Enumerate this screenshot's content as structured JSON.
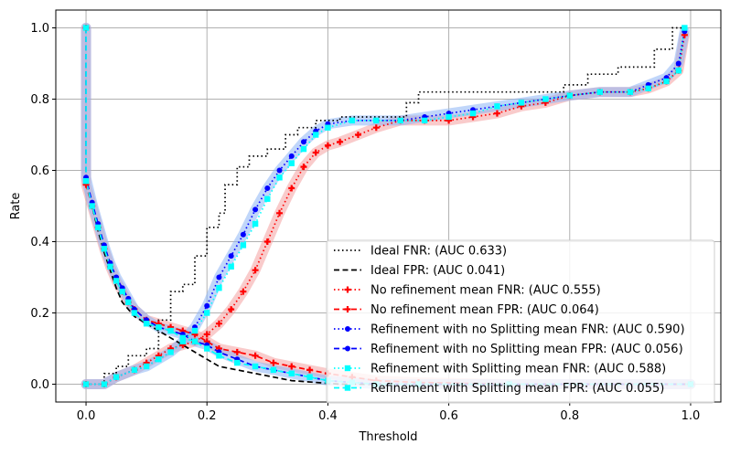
{
  "chart_data": {
    "type": "line",
    "title": "",
    "xlabel": "Threshold",
    "ylabel": "Rate",
    "xlim": [
      -0.05,
      1.05
    ],
    "ylim": [
      -0.05,
      1.05
    ],
    "xticks": [
      "0.0",
      "0.2",
      "0.4",
      "0.6",
      "0.8",
      "1.0"
    ],
    "yticks": [
      "0.0",
      "0.2",
      "0.4",
      "0.6",
      "0.8",
      "1.0"
    ],
    "grid": true,
    "legend_position": "bottom-right",
    "series": [
      {
        "name": "Ideal FNR: (AUC 0.633)",
        "color": "#000000",
        "dash": "dotted",
        "marker": "none",
        "band": false,
        "x": [
          0.0,
          0.03,
          0.03,
          0.05,
          0.05,
          0.07,
          0.07,
          0.1,
          0.1,
          0.12,
          0.12,
          0.14,
          0.14,
          0.16,
          0.16,
          0.18,
          0.18,
          0.2,
          0.2,
          0.22,
          0.22,
          0.23,
          0.23,
          0.25,
          0.25,
          0.27,
          0.27,
          0.3,
          0.3,
          0.33,
          0.33,
          0.35,
          0.35,
          0.38,
          0.38,
          0.42,
          0.42,
          0.53,
          0.53,
          0.55,
          0.55,
          0.66,
          0.66,
          0.76,
          0.76,
          0.79,
          0.79,
          0.83,
          0.83,
          0.88,
          0.88,
          0.94,
          0.94,
          0.97,
          0.97,
          0.99
        ],
        "y": [
          0.0,
          0.0,
          0.03,
          0.03,
          0.05,
          0.05,
          0.08,
          0.08,
          0.1,
          0.1,
          0.18,
          0.18,
          0.26,
          0.26,
          0.28,
          0.28,
          0.36,
          0.36,
          0.44,
          0.44,
          0.48,
          0.48,
          0.56,
          0.56,
          0.61,
          0.61,
          0.64,
          0.64,
          0.66,
          0.66,
          0.7,
          0.7,
          0.72,
          0.72,
          0.74,
          0.74,
          0.75,
          0.75,
          0.79,
          0.79,
          0.82,
          0.82,
          0.82,
          0.82,
          0.82,
          0.82,
          0.84,
          0.84,
          0.87,
          0.87,
          0.89,
          0.89,
          0.94,
          0.94,
          1.0,
          1.0
        ]
      },
      {
        "name": "Ideal FPR: (AUC 0.041)",
        "color": "#000000",
        "dash": "dashed",
        "marker": "none",
        "band": false,
        "x": [
          0.0,
          0.0,
          0.01,
          0.02,
          0.03,
          0.04,
          0.05,
          0.06,
          0.08,
          0.1,
          0.12,
          0.14,
          0.16,
          0.18,
          0.2,
          0.22,
          0.25,
          0.28,
          0.31,
          0.34,
          0.38,
          0.42,
          0.5,
          0.7,
          1.0
        ],
        "y": [
          1.0,
          0.58,
          0.5,
          0.43,
          0.37,
          0.32,
          0.27,
          0.23,
          0.19,
          0.17,
          0.15,
          0.13,
          0.11,
          0.09,
          0.07,
          0.05,
          0.04,
          0.03,
          0.02,
          0.01,
          0.005,
          0.0,
          0.0,
          0.0,
          0.0
        ]
      },
      {
        "name": "No refinement mean FNR: (AUC 0.555)",
        "color": "#ff0000",
        "dash": "dotted",
        "marker": "plus",
        "band": true,
        "band_color": "#f4a0a0",
        "x": [
          0.0,
          0.03,
          0.05,
          0.08,
          0.1,
          0.12,
          0.14,
          0.16,
          0.18,
          0.2,
          0.22,
          0.24,
          0.26,
          0.28,
          0.3,
          0.32,
          0.34,
          0.36,
          0.38,
          0.4,
          0.42,
          0.45,
          0.48,
          0.52,
          0.56,
          0.6,
          0.64,
          0.68,
          0.72,
          0.76,
          0.8,
          0.85,
          0.9,
          0.93,
          0.96,
          0.98,
          0.99
        ],
        "y": [
          0.0,
          0.0,
          0.02,
          0.04,
          0.06,
          0.08,
          0.1,
          0.11,
          0.12,
          0.14,
          0.17,
          0.21,
          0.26,
          0.32,
          0.4,
          0.48,
          0.55,
          0.61,
          0.65,
          0.67,
          0.68,
          0.7,
          0.72,
          0.74,
          0.74,
          0.74,
          0.75,
          0.76,
          0.78,
          0.79,
          0.81,
          0.82,
          0.82,
          0.83,
          0.85,
          0.88,
          0.98
        ]
      },
      {
        "name": "No refinement mean FPR: (AUC 0.064)",
        "color": "#ff0000",
        "dash": "dashed",
        "marker": "plus",
        "band": true,
        "band_color": "#f4a0a0",
        "x": [
          0.0,
          0.0,
          0.01,
          0.02,
          0.03,
          0.04,
          0.05,
          0.06,
          0.07,
          0.08,
          0.1,
          0.12,
          0.14,
          0.16,
          0.18,
          0.2,
          0.22,
          0.25,
          0.28,
          0.31,
          0.34,
          0.37,
          0.4,
          0.44,
          0.48,
          0.55,
          0.7,
          1.0
        ],
        "y": [
          1.0,
          0.56,
          0.5,
          0.44,
          0.38,
          0.33,
          0.29,
          0.26,
          0.23,
          0.21,
          0.18,
          0.17,
          0.16,
          0.15,
          0.14,
          0.12,
          0.1,
          0.09,
          0.08,
          0.06,
          0.05,
          0.04,
          0.03,
          0.02,
          0.01,
          0.005,
          0.0,
          0.0
        ]
      },
      {
        "name": "Refinement with no Splitting mean FNR: (AUC 0.590)",
        "color": "#0000ff",
        "dash": "dotted",
        "marker": "dot",
        "band": true,
        "band_color": "#8db4f6",
        "x": [
          0.0,
          0.03,
          0.05,
          0.08,
          0.1,
          0.12,
          0.14,
          0.16,
          0.18,
          0.2,
          0.22,
          0.24,
          0.26,
          0.28,
          0.3,
          0.32,
          0.34,
          0.36,
          0.38,
          0.4,
          0.44,
          0.48,
          0.52,
          0.56,
          0.6,
          0.64,
          0.68,
          0.72,
          0.76,
          0.8,
          0.85,
          0.9,
          0.93,
          0.96,
          0.98,
          0.99
        ],
        "y": [
          0.0,
          0.0,
          0.02,
          0.04,
          0.05,
          0.07,
          0.09,
          0.12,
          0.16,
          0.22,
          0.3,
          0.36,
          0.42,
          0.49,
          0.55,
          0.6,
          0.64,
          0.68,
          0.71,
          0.73,
          0.74,
          0.74,
          0.74,
          0.75,
          0.76,
          0.77,
          0.78,
          0.79,
          0.8,
          0.81,
          0.82,
          0.82,
          0.84,
          0.86,
          0.9,
          0.99
        ]
      },
      {
        "name": "Refinement with no Splitting mean FPR: (AUC 0.056)",
        "color": "#0000ff",
        "dash": "dashed",
        "marker": "dot",
        "band": true,
        "band_color": "#8db4f6",
        "x": [
          0.0,
          0.0,
          0.01,
          0.02,
          0.03,
          0.04,
          0.05,
          0.06,
          0.07,
          0.08,
          0.1,
          0.12,
          0.14,
          0.16,
          0.18,
          0.2,
          0.22,
          0.25,
          0.28,
          0.31,
          0.34,
          0.37,
          0.4,
          0.44,
          0.48,
          0.55,
          0.7,
          1.0
        ],
        "y": [
          1.0,
          0.58,
          0.51,
          0.45,
          0.39,
          0.34,
          0.3,
          0.27,
          0.24,
          0.21,
          0.18,
          0.16,
          0.15,
          0.14,
          0.12,
          0.11,
          0.09,
          0.07,
          0.05,
          0.04,
          0.03,
          0.02,
          0.01,
          0.005,
          0.0,
          0.0,
          0.0,
          0.0
        ]
      },
      {
        "name": "Refinement with Splitting mean FNR: (AUC 0.588)",
        "color": "#00ffff",
        "dash": "dotted",
        "marker": "square",
        "band": false,
        "x": [
          0.0,
          0.03,
          0.05,
          0.08,
          0.1,
          0.12,
          0.14,
          0.16,
          0.18,
          0.2,
          0.22,
          0.24,
          0.26,
          0.28,
          0.3,
          0.32,
          0.34,
          0.36,
          0.38,
          0.4,
          0.44,
          0.48,
          0.52,
          0.56,
          0.6,
          0.64,
          0.68,
          0.72,
          0.76,
          0.8,
          0.85,
          0.9,
          0.93,
          0.96,
          0.98,
          0.99
        ],
        "y": [
          0.0,
          0.0,
          0.02,
          0.04,
          0.05,
          0.07,
          0.09,
          0.12,
          0.15,
          0.2,
          0.27,
          0.33,
          0.39,
          0.45,
          0.52,
          0.58,
          0.62,
          0.66,
          0.7,
          0.72,
          0.74,
          0.74,
          0.74,
          0.74,
          0.75,
          0.76,
          0.78,
          0.79,
          0.8,
          0.81,
          0.82,
          0.82,
          0.83,
          0.85,
          0.88,
          1.0
        ]
      },
      {
        "name": "Refinement with Splitting mean FPR: (AUC 0.055)",
        "color": "#00ffff",
        "dash": "dashed",
        "marker": "square",
        "band": false,
        "x": [
          0.0,
          0.0,
          0.01,
          0.02,
          0.03,
          0.04,
          0.05,
          0.06,
          0.07,
          0.08,
          0.1,
          0.12,
          0.14,
          0.16,
          0.18,
          0.2,
          0.22,
          0.25,
          0.28,
          0.31,
          0.34,
          0.37,
          0.4,
          0.44,
          0.48,
          0.55,
          0.7,
          1.0
        ],
        "y": [
          1.0,
          0.57,
          0.5,
          0.44,
          0.38,
          0.33,
          0.29,
          0.26,
          0.23,
          0.2,
          0.17,
          0.16,
          0.15,
          0.13,
          0.12,
          0.1,
          0.08,
          0.06,
          0.05,
          0.04,
          0.03,
          0.02,
          0.01,
          0.005,
          0.0,
          0.0,
          0.0,
          0.0
        ]
      }
    ]
  }
}
